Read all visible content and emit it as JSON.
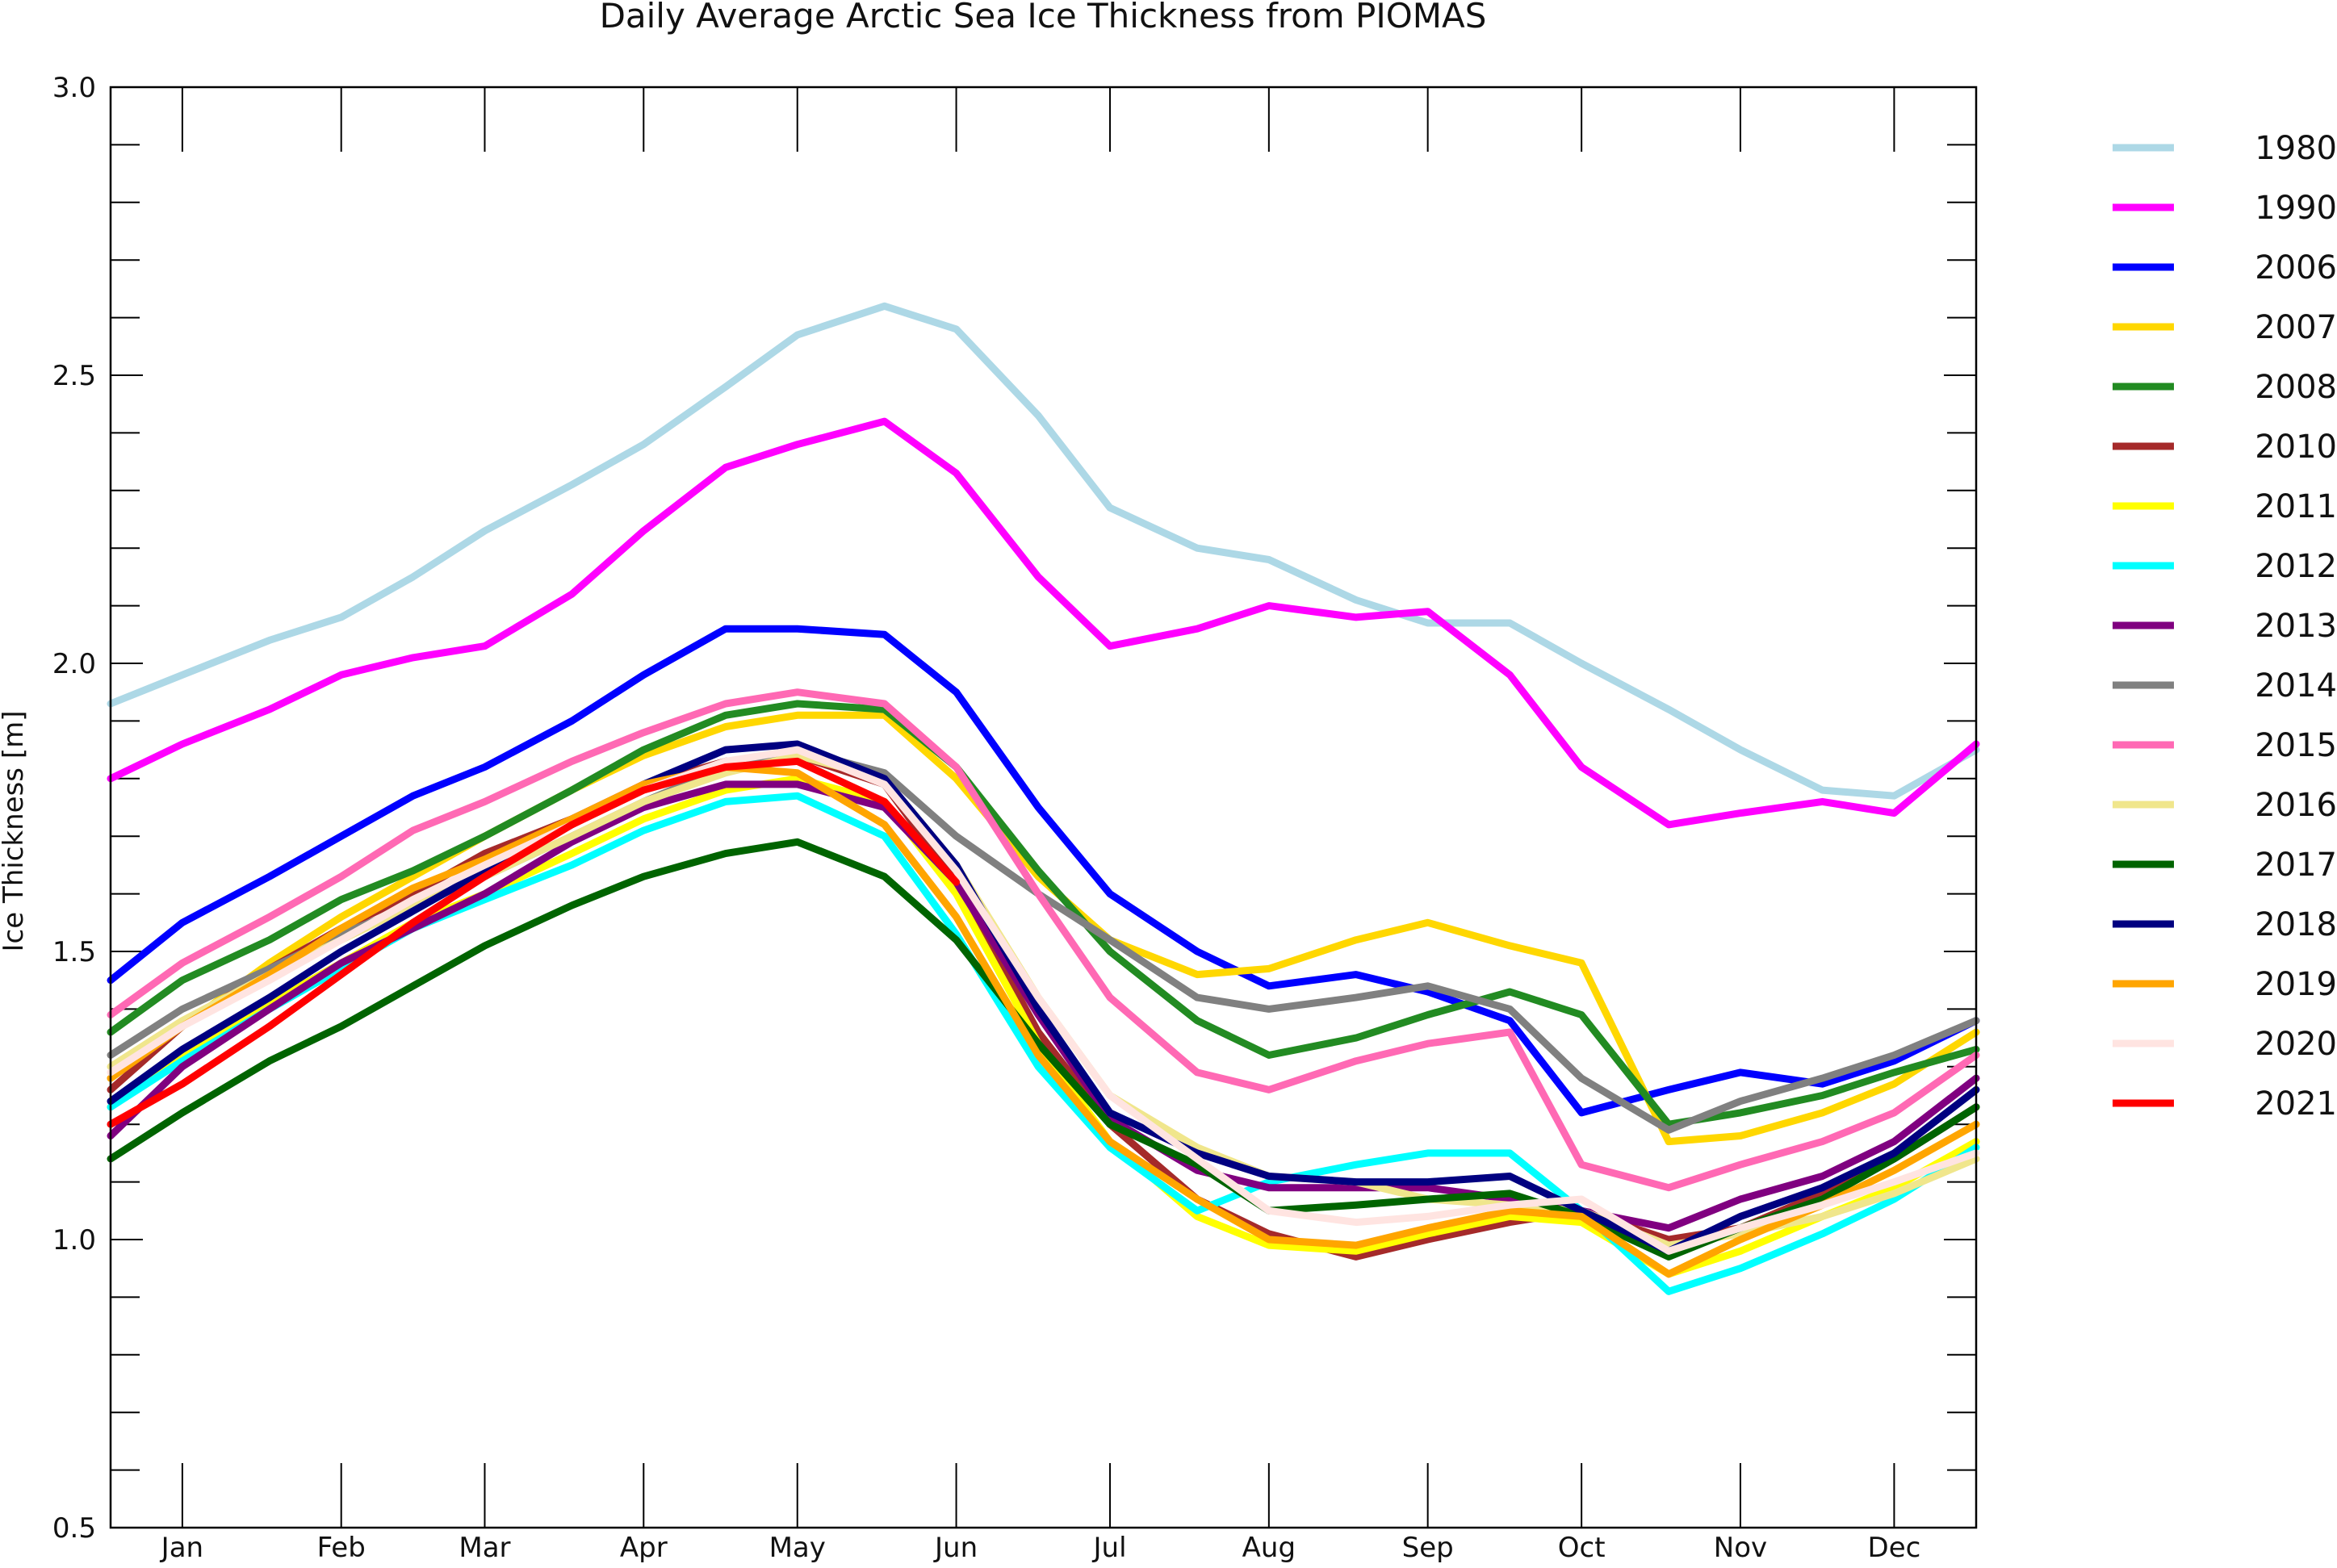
{
  "chart_data": {
    "type": "line",
    "title": "Daily Average Arctic Sea Ice Thickness from PIOMAS",
    "ylabel": "Ice Thickness  [m]",
    "xlabel": "",
    "x_unit": "day of year",
    "xlim": [
      1,
      365
    ],
    "ylim": [
      0.5,
      3.0
    ],
    "y_ticks": [
      "0.5",
      "1.0",
      "1.5",
      "2.0",
      "2.5",
      "3.0"
    ],
    "y_minor_step": 0.1,
    "month_ticks": [
      {
        "label": "Jan",
        "day": 15
      },
      {
        "label": "Feb",
        "day": 46
      },
      {
        "label": "Mar",
        "day": 74
      },
      {
        "label": "Apr",
        "day": 105
      },
      {
        "label": "May",
        "day": 135
      },
      {
        "label": "Jun",
        "day": 166
      },
      {
        "label": "Jul",
        "day": 196
      },
      {
        "label": "Aug",
        "day": 227
      },
      {
        "label": "Sep",
        "day": 258
      },
      {
        "label": "Oct",
        "day": 288
      },
      {
        "label": "Nov",
        "day": 319
      },
      {
        "label": "Dec",
        "day": 349
      }
    ],
    "grid": false,
    "legend_position": "right",
    "x": [
      1,
      15,
      32,
      46,
      60,
      74,
      91,
      105,
      121,
      135,
      152,
      166,
      182,
      196,
      213,
      227,
      244,
      258,
      274,
      288,
      305,
      319,
      335,
      349,
      365
    ],
    "series": [
      {
        "name": "1980",
        "color": "#add8e6",
        "values": [
          1.93,
          1.98,
          2.04,
          2.08,
          2.15,
          2.23,
          2.31,
          2.38,
          2.48,
          2.57,
          2.62,
          2.58,
          2.43,
          2.27,
          2.2,
          2.18,
          2.11,
          2.07,
          2.07,
          2.0,
          1.92,
          1.85,
          1.78,
          1.77,
          1.85
        ]
      },
      {
        "name": "1990",
        "color": "#ff00ff",
        "values": [
          1.8,
          1.86,
          1.92,
          1.98,
          2.01,
          2.03,
          2.12,
          2.23,
          2.34,
          2.38,
          2.42,
          2.33,
          2.15,
          2.03,
          2.06,
          2.1,
          2.08,
          2.09,
          1.98,
          1.82,
          1.72,
          1.74,
          1.76,
          1.74,
          1.86
        ]
      },
      {
        "name": "2006",
        "color": "#0000ff",
        "values": [
          1.45,
          1.55,
          1.63,
          1.7,
          1.77,
          1.82,
          1.9,
          1.98,
          2.06,
          2.06,
          2.05,
          1.95,
          1.75,
          1.6,
          1.5,
          1.44,
          1.46,
          1.43,
          1.38,
          1.22,
          1.26,
          1.29,
          1.27,
          1.31,
          1.38
        ]
      },
      {
        "name": "2007",
        "color": "#ffd700",
        "values": [
          1.28,
          1.37,
          1.48,
          1.56,
          1.63,
          1.7,
          1.78,
          1.84,
          1.89,
          1.91,
          1.91,
          1.8,
          1.63,
          1.52,
          1.46,
          1.47,
          1.52,
          1.55,
          1.51,
          1.48,
          1.17,
          1.18,
          1.22,
          1.27,
          1.36
        ]
      },
      {
        "name": "2008",
        "color": "#228b22",
        "values": [
          1.36,
          1.45,
          1.52,
          1.59,
          1.64,
          1.7,
          1.78,
          1.85,
          1.91,
          1.93,
          1.92,
          1.82,
          1.64,
          1.5,
          1.38,
          1.32,
          1.35,
          1.39,
          1.43,
          1.39,
          1.2,
          1.22,
          1.25,
          1.29,
          1.33
        ]
      },
      {
        "name": "2010",
        "color": "#a52a2a",
        "values": [
          1.26,
          1.37,
          1.47,
          1.54,
          1.6,
          1.67,
          1.73,
          1.79,
          1.83,
          1.84,
          1.79,
          1.62,
          1.36,
          1.2,
          1.07,
          1.01,
          0.97,
          1.0,
          1.03,
          1.05,
          1.0,
          1.02,
          1.08,
          1.14,
          1.23
        ]
      },
      {
        "name": "2011",
        "color": "#ffff00",
        "values": [
          1.23,
          1.32,
          1.41,
          1.48,
          1.55,
          1.6,
          1.67,
          1.73,
          1.78,
          1.8,
          1.76,
          1.6,
          1.34,
          1.17,
          1.04,
          0.99,
          0.98,
          1.01,
          1.04,
          1.03,
          0.94,
          0.98,
          1.04,
          1.09,
          1.17
        ]
      },
      {
        "name": "2012",
        "color": "#00ffff",
        "values": [
          1.23,
          1.31,
          1.4,
          1.47,
          1.54,
          1.59,
          1.65,
          1.71,
          1.76,
          1.77,
          1.7,
          1.53,
          1.3,
          1.16,
          1.05,
          1.1,
          1.13,
          1.15,
          1.15,
          1.05,
          0.91,
          0.95,
          1.01,
          1.07,
          1.16
        ]
      },
      {
        "name": "2013",
        "color": "#800080",
        "values": [
          1.18,
          1.3,
          1.4,
          1.48,
          1.54,
          1.6,
          1.69,
          1.75,
          1.79,
          1.79,
          1.75,
          1.62,
          1.39,
          1.21,
          1.12,
          1.09,
          1.09,
          1.09,
          1.07,
          1.05,
          1.02,
          1.07,
          1.11,
          1.17,
          1.28
        ]
      },
      {
        "name": "2014",
        "color": "#808080",
        "values": [
          1.32,
          1.4,
          1.47,
          1.53,
          1.58,
          1.63,
          1.7,
          1.76,
          1.82,
          1.85,
          1.81,
          1.7,
          1.6,
          1.52,
          1.42,
          1.4,
          1.42,
          1.44,
          1.4,
          1.28,
          1.19,
          1.24,
          1.28,
          1.32,
          1.38
        ]
      },
      {
        "name": "2015",
        "color": "#ff69b4",
        "values": [
          1.39,
          1.48,
          1.56,
          1.63,
          1.71,
          1.76,
          1.83,
          1.88,
          1.93,
          1.95,
          1.93,
          1.82,
          1.6,
          1.42,
          1.29,
          1.26,
          1.31,
          1.34,
          1.36,
          1.13,
          1.09,
          1.13,
          1.17,
          1.22,
          1.32
        ]
      },
      {
        "name": "2016",
        "color": "#f0e68c",
        "values": [
          1.3,
          1.38,
          1.46,
          1.52,
          1.58,
          1.63,
          1.7,
          1.76,
          1.81,
          1.84,
          1.8,
          1.65,
          1.42,
          1.25,
          1.16,
          1.11,
          1.1,
          1.07,
          1.06,
          1.05,
          0.99,
          1.01,
          1.04,
          1.08,
          1.14
        ]
      },
      {
        "name": "2017",
        "color": "#006400",
        "values": [
          1.14,
          1.22,
          1.31,
          1.37,
          1.44,
          1.51,
          1.58,
          1.63,
          1.67,
          1.69,
          1.63,
          1.52,
          1.34,
          1.2,
          1.13,
          1.05,
          1.06,
          1.07,
          1.08,
          1.04,
          0.97,
          1.02,
          1.07,
          1.14,
          1.23
        ]
      },
      {
        "name": "2018",
        "color": "#000080",
        "values": [
          1.24,
          1.33,
          1.42,
          1.5,
          1.57,
          1.64,
          1.72,
          1.79,
          1.85,
          1.86,
          1.8,
          1.65,
          1.4,
          1.22,
          1.15,
          1.11,
          1.1,
          1.1,
          1.11,
          1.05,
          0.98,
          1.04,
          1.09,
          1.15,
          1.26
        ]
      },
      {
        "name": "2019",
        "color": "#ffa500",
        "values": [
          1.28,
          1.37,
          1.46,
          1.54,
          1.61,
          1.66,
          1.73,
          1.79,
          1.82,
          1.81,
          1.72,
          1.56,
          1.32,
          1.17,
          1.07,
          1.0,
          0.99,
          1.02,
          1.05,
          1.04,
          0.94,
          1.0,
          1.06,
          1.12,
          1.2
        ]
      },
      {
        "name": "2020",
        "color": "#ffe4e1",
        "values": [
          1.29,
          1.37,
          1.45,
          1.52,
          1.59,
          1.65,
          1.72,
          1.78,
          1.83,
          1.85,
          1.79,
          1.64,
          1.42,
          1.25,
          1.14,
          1.05,
          1.03,
          1.04,
          1.06,
          1.07,
          0.98,
          1.02,
          1.06,
          1.1,
          1.15
        ]
      },
      {
        "name": "2021",
        "color": "#ff0000",
        "values": [
          1.2,
          1.27,
          1.37,
          1.46,
          1.55,
          1.63,
          1.72,
          1.78,
          1.82,
          1.83,
          1.76,
          1.62,
          null,
          null,
          null,
          null,
          null,
          null,
          null,
          null,
          null,
          null,
          null,
          null,
          null
        ]
      }
    ]
  }
}
